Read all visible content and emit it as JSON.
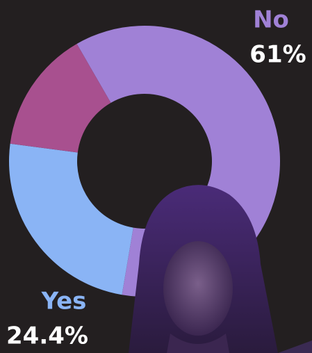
{
  "chart_data": {
    "type": "donut",
    "categories": [
      "No",
      "Yes",
      null
    ],
    "values": [
      61,
      24.4,
      14.6
    ],
    "value_labels": [
      "61%",
      "24.4%",
      null
    ],
    "colors": [
      "#a081d6",
      "#8ab4f5",
      "#a8508f"
    ]
  }
}
